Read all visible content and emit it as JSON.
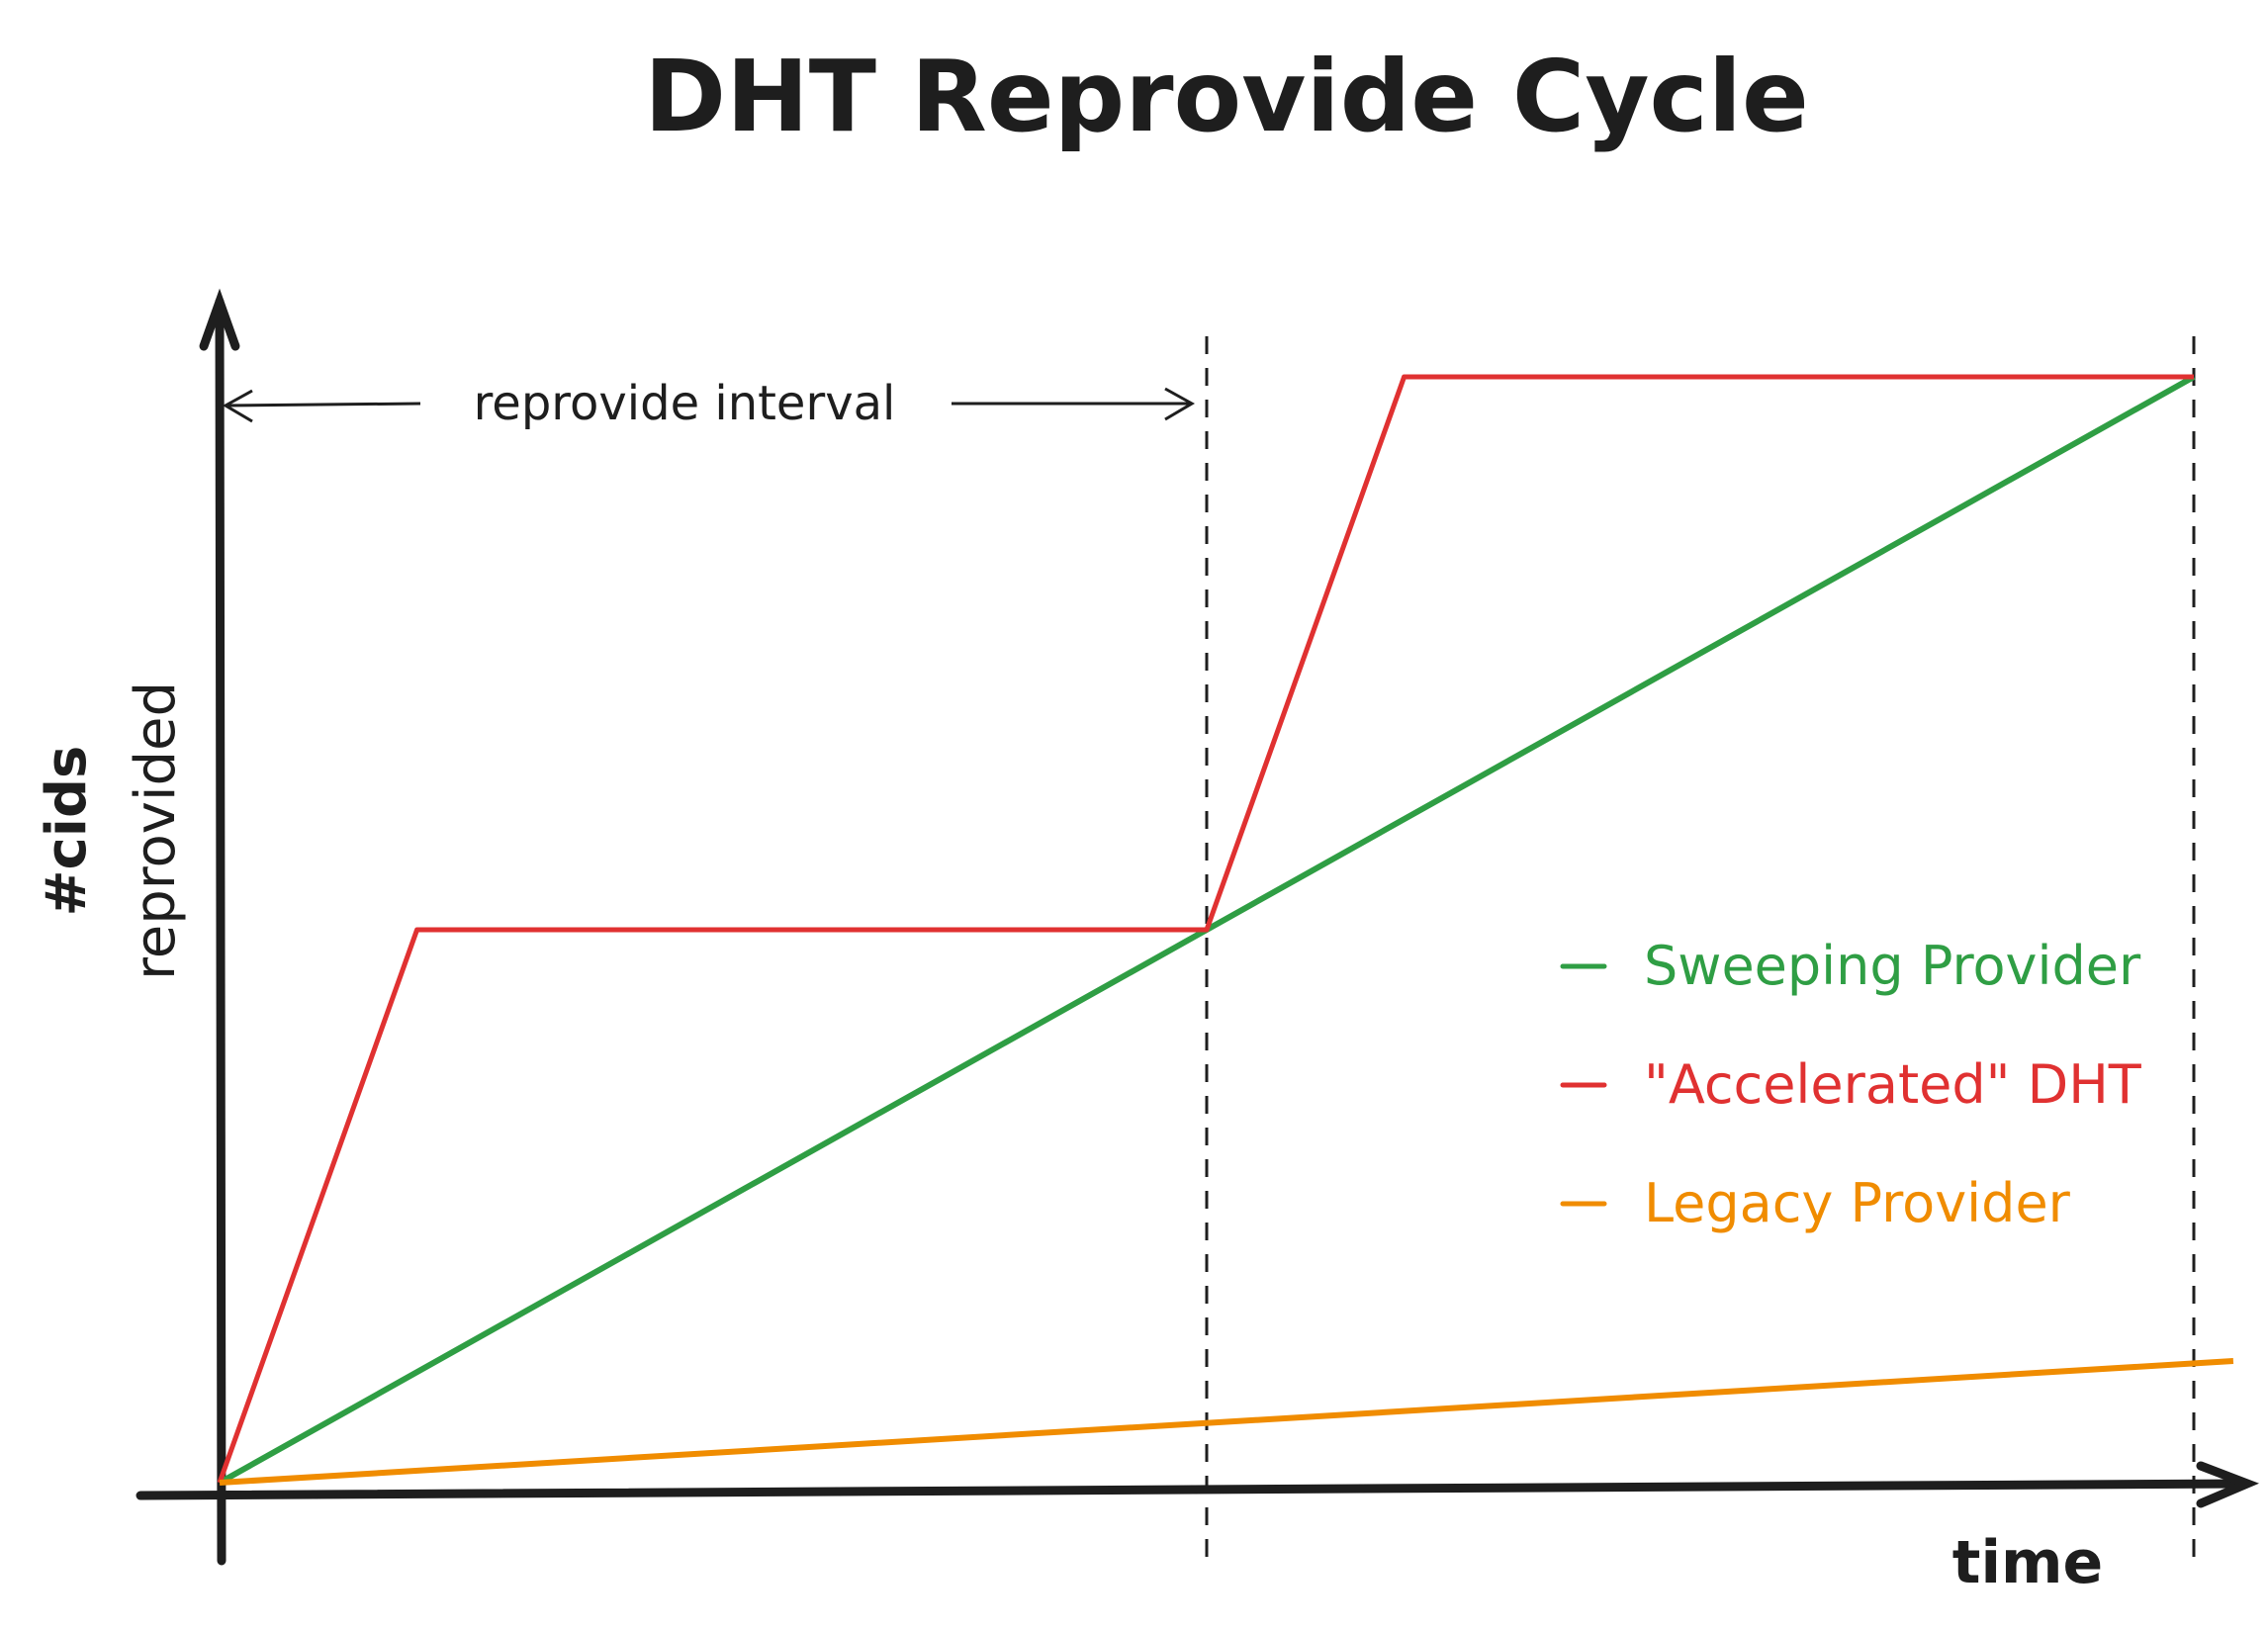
{
  "chart_data": {
    "type": "line",
    "title": "DHT Reprovide Cycle",
    "xlabel": "time",
    "ylabel": [
      "#cids",
      "reprovided"
    ],
    "xlim": [
      0,
      2
    ],
    "ylim": [
      0,
      2
    ],
    "grid": false,
    "legend_placement": "right",
    "annotations": {
      "interval_label": "reprovide interval",
      "interval_range": [
        0,
        1
      ],
      "dashed_markers_x": [
        1,
        2
      ]
    },
    "series": [
      {
        "name": "Sweeping Provider",
        "color": "#2f9e44",
        "x": [
          0,
          1,
          2
        ],
        "y": [
          0,
          1,
          2
        ]
      },
      {
        "name": "\"Accelerated\" DHT",
        "color": "#e03131",
        "x": [
          0,
          0.2,
          1,
          1.2,
          2
        ],
        "y": [
          0,
          1,
          1,
          2,
          2
        ]
      },
      {
        "name": "Legacy Provider",
        "color": "#f08c00",
        "x": [
          0,
          2.04
        ],
        "y": [
          0,
          0.22
        ]
      }
    ]
  }
}
